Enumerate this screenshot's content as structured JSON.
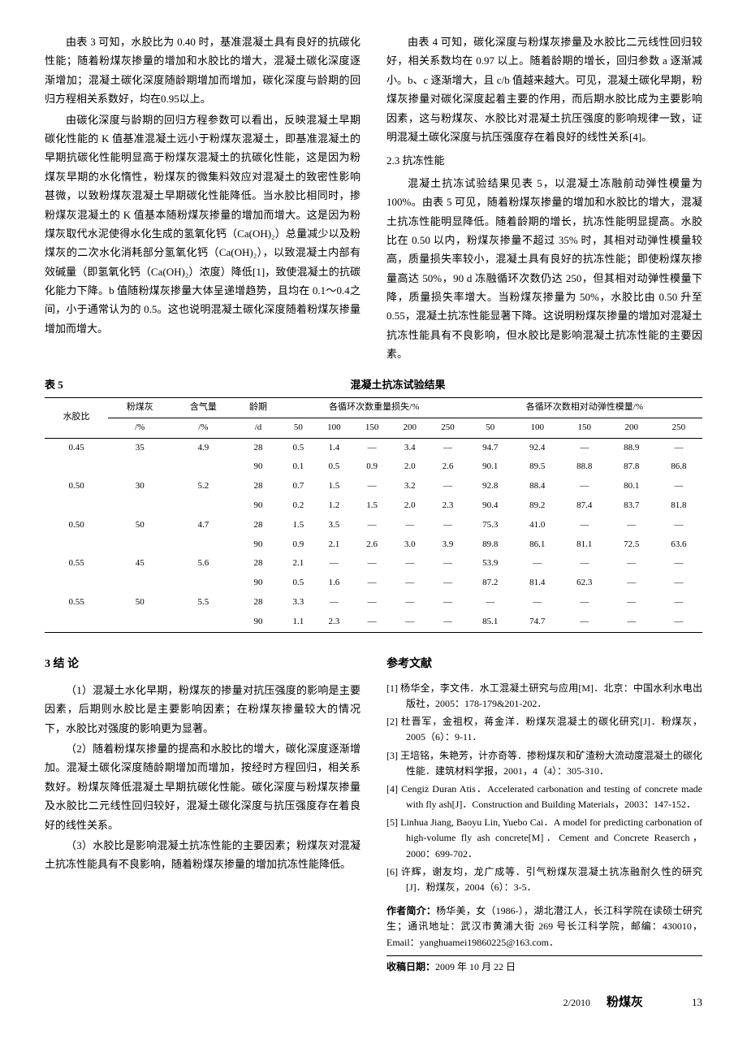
{
  "upper_left_paragraphs": [
    "由表 3 可知，水胶比为 0.40 时，基准混凝土具有良好的抗碳化性能；随着粉煤灰掺量的增加和水胶比的增大，混凝土碳化深度逐渐增加；混凝土碳化深度随龄期增加而增加，碳化深度与龄期的回归方程相关系数好，均在0.95以上。",
    "由碳化深度与龄期的回归方程参数可以看出，反映混凝土早期碳化性能的 K 值基准混凝土远小于粉煤灰混凝土，即基准混凝土的早期抗碳化性能明显高于粉煤灰混凝土的抗碳化性能，这是因为粉煤灰早期的水化惰性，粉煤灰的微集料效应对混凝土的致密性影响甚微，以致粉煤灰混凝土早期碳化性能降低。当水胶比相同时，掺粉煤灰混凝土的 K 值基本随粉煤灰掺量的增加而增大。这是因为粉煤灰取代水泥使得水化生成的氢氧化钙（Ca(OH)₂）总量减少以及粉煤灰的二次水化消耗部分氢氧化钙（Ca(OH)₂），以致混凝土内部有效碱量（即氢氧化钙（Ca(OH)₂）浓度）降低[1]，致使混凝土的抗碳化能力下降。b 值随粉煤灰掺量大体呈递增趋势，且均在 0.1～0.4之间，小于通常认为的 0.5。这也说明混凝土碳化深度随着粉煤灰掺量增加而增大。"
  ],
  "upper_right_paragraphs": [
    "由表 4 可知，碳化深度与粉煤灰掺量及水胶比二元线性回归较好，相关系数均在 0.97 以上。随着龄期的增长，回归参数 a 逐渐减小。b、c 逐渐增大，且 c/b 值越来越大。可见，混凝土碳化早期，粉煤灰掺量对碳化深度起着主要的作用，而后期水胶比成为主要影响因素，这与粉煤灰、水胶比对混凝土抗压强度的影响规律一致，证明混凝土碳化深度与抗压强度存在着良好的线性关系[4]。"
  ],
  "section_2_3_head": "2.3 抗冻性能",
  "section_2_3_body": [
    "混凝土抗冻试验结果见表 5，以混凝土冻融前动弹性模量为 100%。由表 5 可见，随着粉煤灰掺量的增加和水胶比的增大，混凝土抗冻性能明显降低。随着龄期的增长，抗冻性能明显提高。水胶比在 0.50 以内，粉煤灰掺量不超过 35% 时，其相对动弹性模量较高，质量损失率较小，混凝土具有良好的抗冻性能；即使粉煤灰掺量高达 50%，90 d 冻融循环次数仍达 250，但其相对动弹性模量下降，质量损失率增大。当粉煤灰掺量为 50%，水胶比由 0.50 升至 0.55，混凝土抗冻性能显著下降。这说明粉煤灰掺量的增加对混凝土抗冻性能具有不良影响，但水胶比是影响混凝土抗冻性能的主要因素。"
  ],
  "table5": {
    "label": "表 5",
    "caption": "混凝土抗冻试验结果",
    "header_row1": [
      "水胶比",
      "粉煤灰",
      "含气量",
      "龄期",
      "各循环次数重量损失/%",
      "各循环次数相对动弹性模量/%"
    ],
    "header_row2": [
      "",
      "/%",
      "/%",
      "/d",
      "50",
      "100",
      "150",
      "200",
      "250",
      "50",
      "100",
      "150",
      "200",
      "250"
    ],
    "rows": [
      [
        "0.45",
        "35",
        "4.9",
        "28",
        "0.5",
        "1.4",
        "—",
        "3.4",
        "—",
        "94.7",
        "92.4",
        "—",
        "88.9",
        "—"
      ],
      [
        "",
        "",
        "",
        "90",
        "0.1",
        "0.5",
        "0.9",
        "2.0",
        "2.6",
        "90.1",
        "89.5",
        "88.8",
        "87.8",
        "86.8"
      ],
      [
        "0.50",
        "30",
        "5.2",
        "28",
        "0.7",
        "1.5",
        "—",
        "3.2",
        "—",
        "92.8",
        "88.4",
        "—",
        "80.1",
        "—"
      ],
      [
        "",
        "",
        "",
        "90",
        "0.2",
        "1.2",
        "1.5",
        "2.0",
        "2.3",
        "90.4",
        "89.2",
        "87.4",
        "83.7",
        "81.8"
      ],
      [
        "0.50",
        "50",
        "4.7",
        "28",
        "1.5",
        "3.5",
        "—",
        "—",
        "—",
        "75.3",
        "41.0",
        "—",
        "—",
        "—"
      ],
      [
        "",
        "",
        "",
        "90",
        "0.9",
        "2.1",
        "2.6",
        "3.0",
        "3.9",
        "89.8",
        "86.1",
        "81.1",
        "72.5",
        "63.6"
      ],
      [
        "0.55",
        "45",
        "5.6",
        "28",
        "2.1",
        "—",
        "—",
        "—",
        "—",
        "53.9",
        "—",
        "—",
        "—",
        "—"
      ],
      [
        "",
        "",
        "",
        "90",
        "0.5",
        "1.6",
        "—",
        "—",
        "—",
        "87.2",
        "81.4",
        "62.3",
        "—",
        "—"
      ],
      [
        "0.55",
        "50",
        "5.5",
        "28",
        "3.3",
        "—",
        "—",
        "—",
        "—",
        "—",
        "—",
        "—",
        "—",
        "—"
      ],
      [
        "",
        "",
        "",
        "90",
        "1.1",
        "2.3",
        "—",
        "—",
        "—",
        "85.1",
        "74.7",
        "—",
        "—",
        "—"
      ]
    ]
  },
  "conclusion_head": "3 结 论",
  "conclusion_body": [
    "（1）混凝土水化早期，粉煤灰的掺量对抗压强度的影响是主要因素，后期则水胶比是主要影响因素；在粉煤灰掺量较大的情况下，水胶比对强度的影响更为显著。",
    "（2）随着粉煤灰掺量的提高和水胶比的增大，碳化深度逐渐增加。混凝土碳化深度随龄期增加而增加，按经时方程回归，相关系数好。粉煤灰降低混凝土早期抗碳化性能。碳化深度与粉煤灰掺量及水胶比二元线性回归较好，混凝土碳化深度与抗压强度存在着良好的线性关系。",
    "（3）水胶比是影响混凝土抗冻性能的主要因素；粉煤灰对混凝土抗冻性能具有不良影响，随着粉煤灰掺量的增加抗冻性能降低。"
  ],
  "refs_head": "参考文献",
  "references": [
    "[1] 杨华全，李文伟．水工混凝土研究与应用[M]．北京：中国水利水电出版社，2005：178-179&201-202．",
    "[2] 杜晋军，金祖权，蒋金洋．粉煤灰混凝土的碳化研究[J]．粉煤灰，2005（6）：9-11．",
    "[3] 王培铭，朱艳芳，计亦奇等．掺粉煤灰和矿渣粉大流动度混凝土的碳化性能．建筑材料学报，2001，4（4）：305-310．",
    "[4] Cengiz Duran Atis．Accelerated carbonation and testing of concrete made with fly ash[J]．Construction and Building Materials，2003：147-152．",
    "[5] Linhua Jiang, Baoyu Lin, Yuebo Cai．A model for predicting carbonation of high-volume fly ash concrete[M]．Cement and Concrete Reaserch，2000：699-702．",
    "[6] 许辉，谢友均，龙广成等．引气粉煤灰混凝土抗冻融耐久性的研究[J]．粉煤灰，2004（6）：3-5．"
  ],
  "author_label": "作者简介：",
  "author_text": "杨华美，女（1986-），湖北潜江人，长江科学院在读硕士研究生；通讯地址：武汉市黄浦大街 269 号长江科学院，邮编：430010，Email：yanghuamei19860225@163.com．",
  "recv_label": "收稿日期：",
  "recv_date": "2009 年 10 月 22 日",
  "footer": {
    "issue": "2/2010",
    "journal": "粉煤灰",
    "page": "13"
  }
}
